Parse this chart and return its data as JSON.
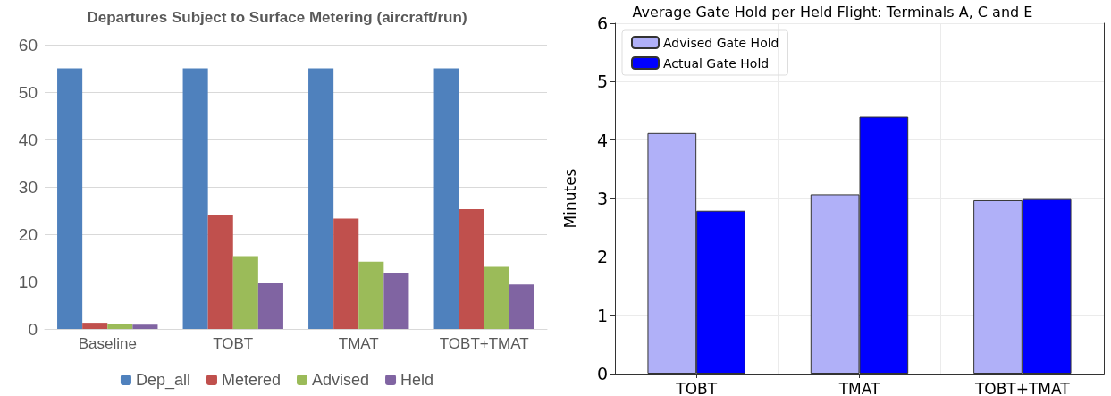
{
  "chart_data": [
    {
      "type": "bar",
      "title": "Departures Subject to Surface Metering (aircraft/run)",
      "categories": [
        "Baseline",
        "TOBT",
        "TMAT",
        "TOBT+TMAT"
      ],
      "series": [
        {
          "name": "Dep_all",
          "color": "#4f81bd",
          "values": [
            55,
            55,
            55,
            55
          ]
        },
        {
          "name": "Metered",
          "color": "#c0504d",
          "values": [
            1.3,
            24.0,
            23.3,
            25.3
          ]
        },
        {
          "name": "Advised",
          "color": "#9bbb59",
          "values": [
            1.1,
            15.4,
            14.2,
            13.1
          ]
        },
        {
          "name": "Held",
          "color": "#8064a2",
          "values": [
            0.9,
            9.6,
            11.9,
            9.4
          ]
        }
      ],
      "ylim": [
        0,
        60
      ],
      "yticks": [
        0,
        10,
        20,
        30,
        40,
        50,
        60
      ],
      "grid": "y",
      "legend": "bottom"
    },
    {
      "type": "bar",
      "title": "Average Gate Hold per Held Flight: Terminals A, C and E",
      "ylabel": "Minutes",
      "categories": [
        "TOBT",
        "TMAT",
        "TOBT+TMAT"
      ],
      "series": [
        {
          "name": "Advised Gate Hold",
          "color": "#b0b0f8",
          "values": [
            4.12,
            3.07,
            2.97
          ]
        },
        {
          "name": "Actual Gate Hold",
          "color": "#0000ff",
          "values": [
            2.79,
            4.4,
            2.99
          ]
        }
      ],
      "ylim": [
        0,
        6
      ],
      "yticks": [
        0,
        1,
        2,
        3,
        4,
        5,
        6
      ],
      "grid": true,
      "legend": "top left"
    }
  ]
}
